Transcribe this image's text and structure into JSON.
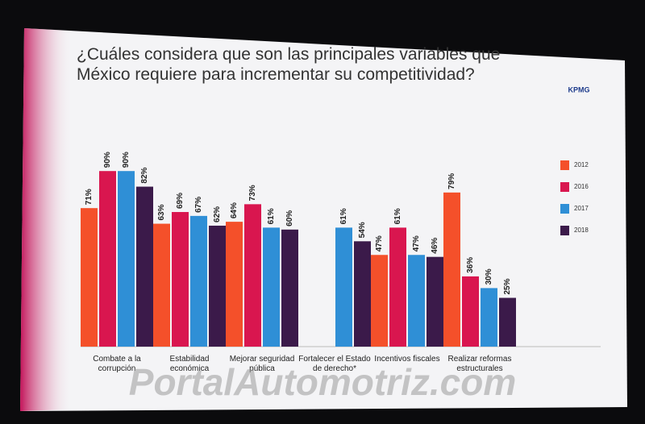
{
  "chart_data": {
    "type": "bar",
    "title": "¿Cuáles considera que son las principales variables que México requiere para incrementar su competitividad?",
    "logo": "KPMG",
    "watermark": "PortalAutomotriz.com",
    "categories": [
      "Combate a la corrupción",
      "Estabilidad económica",
      "Mejorar seguridad pública",
      "Fortalecer el Estado de derecho*",
      "Incentivos fiscales",
      "Realizar reformas estructurales"
    ],
    "series": [
      {
        "name": "2012",
        "color": "#f4502a",
        "values": [
          71,
          63,
          64,
          null,
          47,
          79
        ],
        "value_labels": [
          "71%",
          "63%",
          "64%",
          null,
          "47%",
          "79%"
        ]
      },
      {
        "name": "2016",
        "color": "#d9164f",
        "values": [
          90,
          69,
          73,
          null,
          61,
          36
        ],
        "value_labels": [
          "90%",
          "69%",
          "73%",
          null,
          "61%",
          "36%"
        ]
      },
      {
        "name": "2017",
        "color": "#2f8fd6",
        "values": [
          90,
          67,
          61,
          61,
          47,
          30
        ],
        "value_labels": [
          "90%",
          "67%",
          "61%",
          "61%",
          "47%",
          "30%"
        ]
      },
      {
        "name": "2018",
        "color": "#3b1a4a",
        "values": [
          82,
          62,
          60,
          54,
          46,
          25
        ],
        "value_labels": [
          "82%",
          "62%",
          "60%",
          "54%",
          "46%",
          "25%"
        ]
      }
    ],
    "ylim": [
      0,
      100
    ],
    "legend": "right"
  }
}
